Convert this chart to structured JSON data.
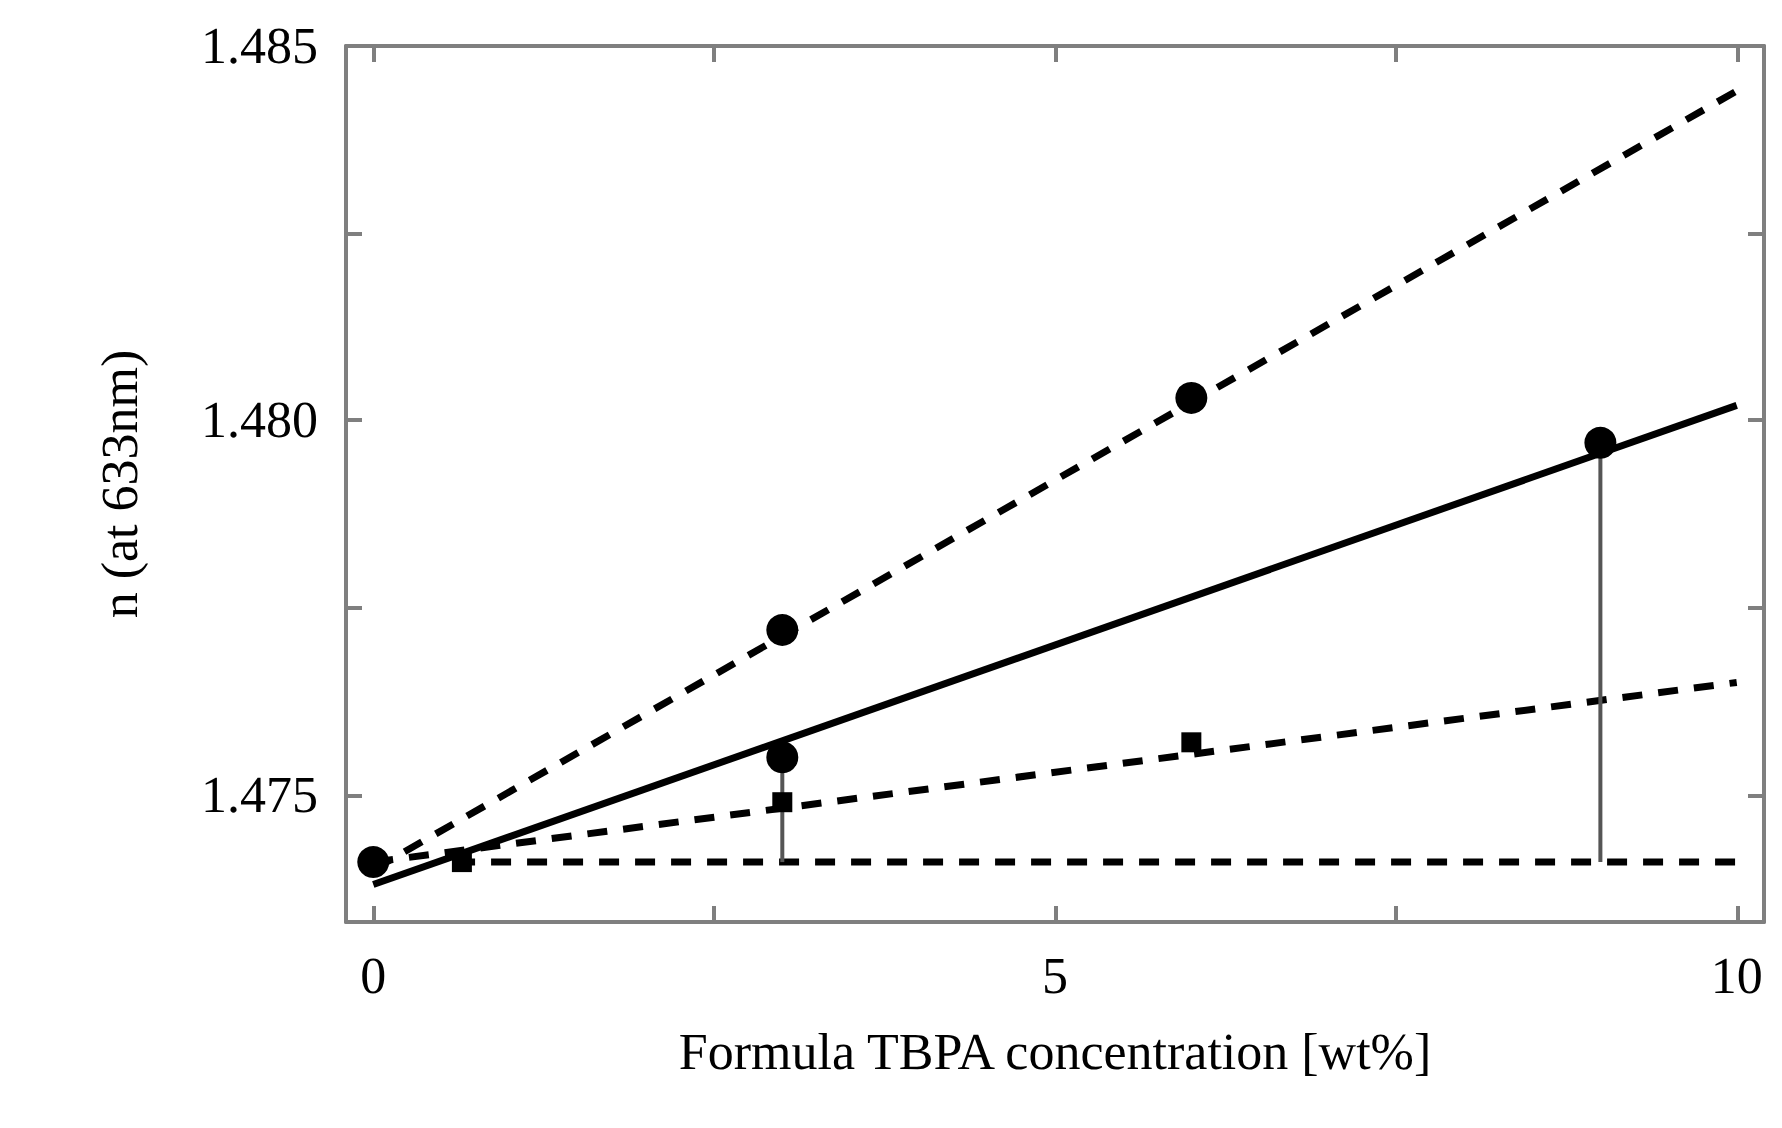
{
  "chart_data": {
    "type": "scatter",
    "xlabel": "Formula TBPA concentration [wt%]",
    "ylabel": "n (at 633nm)",
    "xlim": [
      -0.2,
      10.2
    ],
    "xticks": [
      0,
      {
        "value": 2.5,
        "label": null
      },
      5,
      {
        "value": 7.5,
        "label": null
      },
      10
    ],
    "ylim": [
      1.4733,
      1.485
    ],
    "yticks": [
      {
        "value": 1.475,
        "label": "1.475"
      },
      {
        "value": 1.4775,
        "label": null
      },
      {
        "value": 1.48,
        "label": "1.480"
      },
      {
        "value": 1.4825,
        "label": null
      },
      {
        "value": 1.485,
        "label": "1.485"
      }
    ],
    "grid": false,
    "series": [
      {
        "type": "line",
        "color": "#000000",
        "marker": "none",
        "line_style": "dashed",
        "x": [
          0,
          10
        ],
        "values": [
          1.474,
          1.4844
        ]
      },
      {
        "type": "line",
        "color": "#000000",
        "marker": "none",
        "line_style": "solid",
        "x": [
          0,
          10
        ],
        "values": [
          1.4738,
          1.4802
        ]
      },
      {
        "type": "line",
        "color": "#000000",
        "marker": "none",
        "line_style": "dashed",
        "x": [
          0,
          10
        ],
        "values": [
          1.4741,
          1.4765
        ]
      },
      {
        "type": "line",
        "color": "#000000",
        "marker": "none",
        "line_style": "dashed",
        "x": [
          0.6,
          10
        ],
        "values": [
          1.4741,
          1.4741
        ]
      },
      {
        "type": "line",
        "color": "#555555",
        "marker": "none",
        "line_style": "solid",
        "x": [
          3,
          3
        ],
        "values": [
          1.4741,
          1.4755
        ]
      },
      {
        "type": "line",
        "color": "#555555",
        "marker": "none",
        "line_style": "solid",
        "x": [
          9,
          9
        ],
        "values": [
          1.4741,
          1.4797
        ]
      },
      {
        "color": "#000000",
        "marker": "circle",
        "x": [
          0,
          3,
          6,
          9,
          3
        ],
        "values": [
          1.4741,
          1.4772,
          1.4803,
          1.4797,
          1.4755
        ]
      },
      {
        "color": "#000000",
        "marker": "square",
        "x": [
          0.65,
          3,
          6
        ],
        "values": [
          1.4741,
          1.4749,
          1.4757
        ]
      }
    ]
  }
}
